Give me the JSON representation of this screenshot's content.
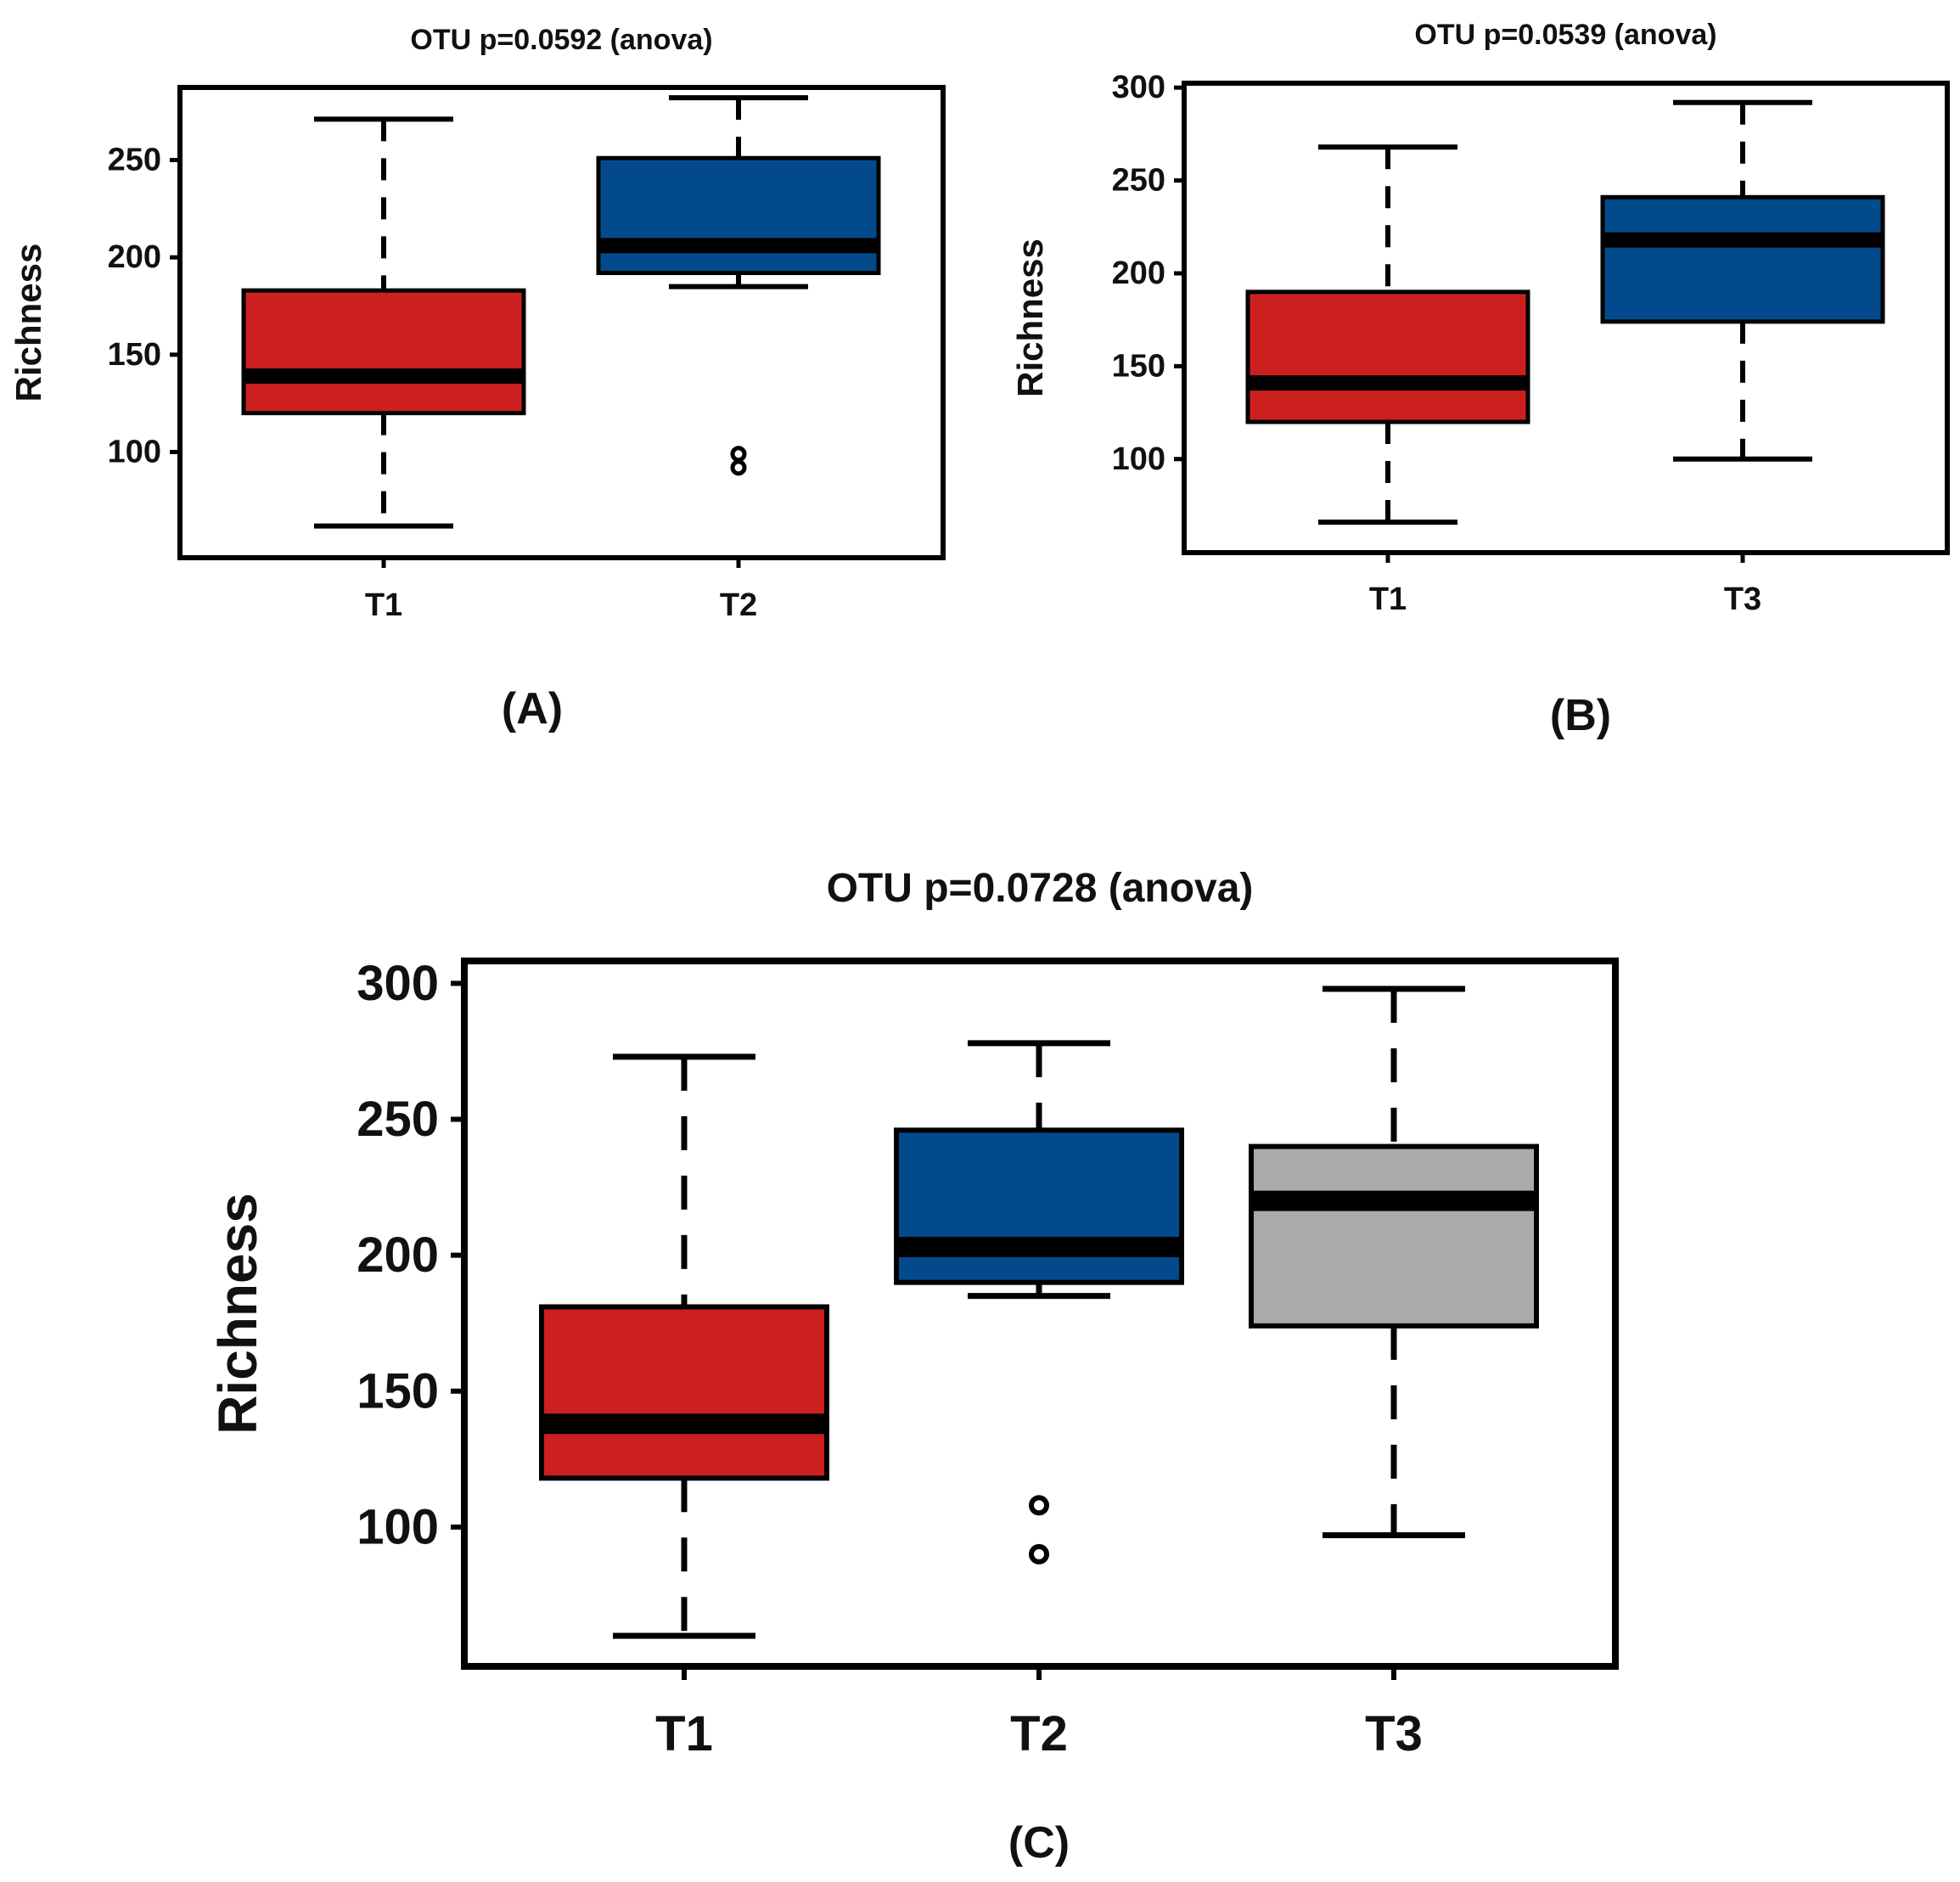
{
  "figure": {
    "panel_labels": [
      "(A)",
      "(B)",
      "(C)"
    ]
  },
  "colors": {
    "T1": "#cc1f1f",
    "T2": "#034a8c",
    "T3_blue": "#034a8c",
    "T3_gray": "#aaaaaa",
    "ink": "#000000"
  },
  "chart_data": [
    {
      "type": "box",
      "panel": "A",
      "title": "OTU p=0.0592 (anova)",
      "ylabel": "Richness",
      "xlabel": "",
      "ylim": [
        47,
        286
      ],
      "yticks": [
        100,
        150,
        200,
        250
      ],
      "categories": [
        "T1",
        "T2"
      ],
      "boxes": [
        {
          "category": "T1",
          "color_key": "T1",
          "whisker_low": 62,
          "q1": 120,
          "median": 139,
          "q3": 183,
          "whisker_high": 271,
          "outliers": []
        },
        {
          "category": "T2",
          "color_key": "T2",
          "whisker_low": 185,
          "q1": 192,
          "median": 206,
          "q3": 251,
          "whisker_high": 282,
          "outliers": [
            92,
            99
          ]
        }
      ]
    },
    {
      "type": "box",
      "panel": "B",
      "title": "OTU p=0.0539 (anova)",
      "ylabel": "Richness",
      "xlabel": "",
      "ylim": [
        51,
        301
      ],
      "yticks": [
        100,
        150,
        200,
        250,
        300
      ],
      "categories": [
        "T1",
        "T3"
      ],
      "boxes": [
        {
          "category": "T1",
          "color_key": "T1",
          "whisker_low": 66,
          "q1": 120,
          "median": 141,
          "q3": 190,
          "whisker_high": 268,
          "outliers": []
        },
        {
          "category": "T3",
          "color_key": "T3_blue",
          "whisker_low": 100,
          "q1": 174,
          "median": 218,
          "q3": 241,
          "whisker_high": 292,
          "outliers": []
        }
      ]
    },
    {
      "type": "box",
      "panel": "C",
      "title": "OTU p=0.0728 (anova)",
      "ylabel": "Richness",
      "xlabel": "",
      "ylim": [
        50,
        307
      ],
      "yticks": [
        100,
        150,
        200,
        250,
        300
      ],
      "categories": [
        "T1",
        "T2",
        "T3"
      ],
      "boxes": [
        {
          "category": "T1",
          "color_key": "T1",
          "whisker_low": 60,
          "q1": 118,
          "median": 138,
          "q3": 181,
          "whisker_high": 273,
          "outliers": []
        },
        {
          "category": "T2",
          "color_key": "T2",
          "whisker_low": 185,
          "q1": 190,
          "median": 203,
          "q3": 246,
          "whisker_high": 278,
          "outliers": [
            90,
            108
          ]
        },
        {
          "category": "T3",
          "color_key": "T3_gray",
          "whisker_low": 97,
          "q1": 174,
          "median": 220,
          "q3": 240,
          "whisker_high": 298,
          "outliers": []
        }
      ]
    }
  ]
}
